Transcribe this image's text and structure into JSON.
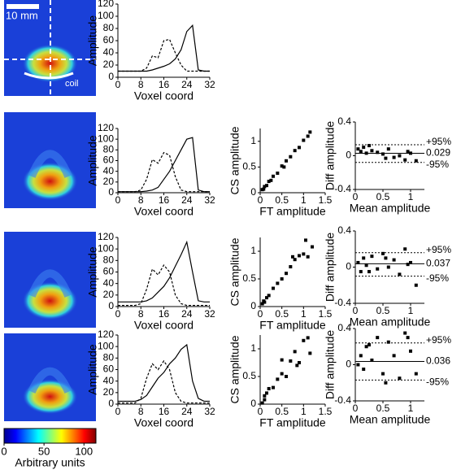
{
  "chart_data": [
    {
      "type": "image",
      "annotations": [
        "10 mm",
        "coil"
      ]
    },
    {
      "type": "line",
      "xlabel": "Voxel coord",
      "ylabel": "Amplitude",
      "x": [
        0,
        2,
        4,
        6,
        8,
        10,
        12,
        14,
        16,
        18,
        20,
        22,
        24,
        26,
        28,
        30,
        32
      ],
      "xlim": [
        0,
        32
      ],
      "xticks": [
        0,
        8,
        16,
        24,
        32
      ],
      "ylim": [
        0,
        120
      ],
      "yticks": [
        0,
        20,
        40,
        60,
        80,
        100,
        120
      ],
      "series": [
        {
          "color": "#000000",
          "dash": "solid",
          "values": [
            10,
            10,
            10,
            10,
            10,
            10,
            12,
            15,
            18,
            22,
            30,
            45,
            75,
            85,
            12,
            10,
            10
          ]
        },
        {
          "color": "#000000",
          "dash": "dashed",
          "values": [
            10,
            10,
            10,
            10,
            10,
            15,
            35,
            32,
            60,
            62,
            40,
            20,
            10,
            10,
            10,
            10,
            10
          ]
        }
      ]
    },
    {
      "type": "image"
    },
    {
      "type": "line",
      "xlabel": "Voxel coord",
      "ylabel": "Amplitude",
      "x": [
        0,
        2,
        4,
        6,
        8,
        10,
        12,
        14,
        16,
        18,
        20,
        22,
        24,
        26,
        28,
        30,
        32
      ],
      "xlim": [
        0,
        32
      ],
      "xticks": [
        0,
        8,
        16,
        24,
        32
      ],
      "ylim": [
        0,
        120
      ],
      "yticks": [
        0,
        20,
        40,
        60,
        80,
        100,
        120
      ],
      "series": [
        {
          "color": "#000000",
          "dash": "solid",
          "values": [
            2,
            2,
            2,
            2,
            2,
            3,
            5,
            10,
            25,
            40,
            60,
            80,
            100,
            103,
            5,
            2,
            2
          ]
        },
        {
          "color": "#000000",
          "dash": "dashed",
          "values": [
            2,
            2,
            2,
            2,
            5,
            25,
            62,
            55,
            75,
            70,
            30,
            5,
            2,
            2,
            2,
            2,
            2
          ]
        }
      ]
    },
    {
      "type": "scatter",
      "xlabel": "FT amplitude",
      "ylabel": "CS amplitude",
      "xlim": [
        0,
        1.5
      ],
      "xticks": [
        0,
        0.5,
        1,
        1.5
      ],
      "ylim": [
        0,
        1.25
      ],
      "yticks": [
        0,
        0.5,
        1
      ],
      "color": "#000000",
      "x": [
        0.05,
        0.08,
        0.1,
        0.15,
        0.2,
        0.25,
        0.3,
        0.4,
        0.5,
        0.6,
        0.7,
        0.8,
        0.9,
        1.0,
        1.1,
        1.15,
        0.55
      ],
      "values": [
        0.06,
        0.07,
        0.12,
        0.14,
        0.22,
        0.24,
        0.32,
        0.38,
        0.52,
        0.62,
        0.7,
        0.82,
        0.88,
        1.02,
        1.1,
        1.18,
        0.5
      ]
    },
    {
      "type": "bland",
      "xlabel": "Mean amplitude",
      "ylabel": "Diff amplitude",
      "xlim": [
        0,
        1.25
      ],
      "xticks": [
        0,
        0.5,
        1
      ],
      "ylim": [
        -0.4,
        0.4
      ],
      "yticks": [
        -0.4,
        0,
        0.4
      ],
      "color": "#000000",
      "x": [
        0.05,
        0.1,
        0.15,
        0.2,
        0.3,
        0.4,
        0.5,
        0.6,
        0.7,
        0.8,
        0.9,
        1.0,
        1.1,
        0.25,
        0.55,
        0.95
      ],
      "values": [
        0.08,
        0.05,
        0.1,
        0.03,
        0.06,
        0.04,
        0.02,
        0.08,
        -0.02,
        0.0,
        -0.05,
        0.03,
        -0.06,
        0.12,
        -0.03,
        0.05
      ],
      "reference_lines": [
        {
          "value": 0.13,
          "label": "+95%"
        },
        {
          "value": 0.029,
          "label": "0.029"
        },
        {
          "value": -0.08,
          "label": "-95%"
        }
      ]
    },
    {
      "type": "image"
    },
    {
      "type": "line",
      "xlabel": "Voxel coord",
      "ylabel": "Amplitude",
      "x": [
        0,
        2,
        4,
        6,
        8,
        10,
        12,
        14,
        16,
        18,
        20,
        22,
        24,
        26,
        28,
        30,
        32
      ],
      "xlim": [
        0,
        32
      ],
      "xticks": [
        0,
        8,
        16,
        24,
        32
      ],
      "ylim": [
        0,
        120
      ],
      "yticks": [
        0,
        20,
        40,
        60,
        80,
        100,
        120
      ],
      "series": [
        {
          "color": "#000000",
          "dash": "solid",
          "values": [
            8,
            8,
            8,
            8,
            8,
            10,
            15,
            25,
            35,
            50,
            70,
            90,
            112,
            60,
            10,
            8,
            8
          ]
        },
        {
          "color": "#000000",
          "dash": "dashed",
          "values": [
            2,
            2,
            2,
            2,
            5,
            30,
            65,
            55,
            72,
            60,
            20,
            5,
            2,
            2,
            2,
            2,
            2
          ]
        }
      ]
    },
    {
      "type": "scatter",
      "xlabel": "FT amplitude",
      "ylabel": "CS amplitude",
      "xlim": [
        0,
        1.5
      ],
      "xticks": [
        0,
        0.5,
        1,
        1.5
      ],
      "ylim": [
        0,
        1.25
      ],
      "yticks": [
        0,
        0.5,
        1
      ],
      "color": "#000000",
      "x": [
        0.05,
        0.08,
        0.1,
        0.15,
        0.2,
        0.3,
        0.4,
        0.5,
        0.6,
        0.7,
        0.8,
        0.9,
        1.0,
        1.05,
        1.1,
        1.2,
        0.75
      ],
      "values": [
        0.05,
        0.1,
        0.08,
        0.16,
        0.2,
        0.33,
        0.42,
        0.5,
        0.6,
        0.72,
        0.85,
        0.92,
        0.95,
        1.2,
        0.9,
        1.08,
        0.9
      ]
    },
    {
      "type": "bland",
      "xlabel": "Mean amplitude",
      "ylabel": "Diff amplitude",
      "xlim": [
        0,
        1.25
      ],
      "xticks": [
        0,
        0.5,
        1
      ],
      "ylim": [
        -0.4,
        0.4
      ],
      "yticks": [
        -0.4,
        0,
        0.4
      ],
      "color": "#000000",
      "x": [
        0.05,
        0.1,
        0.15,
        0.2,
        0.3,
        0.4,
        0.5,
        0.6,
        0.7,
        0.8,
        0.9,
        1.0,
        1.1,
        0.25,
        0.55,
        0.95
      ],
      "values": [
        0.05,
        -0.05,
        0.1,
        0.02,
        0.12,
        -0.02,
        0.15,
        0.0,
        0.08,
        -0.08,
        0.2,
        0.05,
        -0.2,
        -0.05,
        0.1,
        0.03
      ],
      "reference_lines": [
        {
          "value": 0.16,
          "label": "+95%"
        },
        {
          "value": 0.037,
          "label": "0.037"
        },
        {
          "value": -0.1,
          "label": "-95%"
        }
      ]
    },
    {
      "type": "image"
    },
    {
      "type": "line",
      "xlabel": "Voxel coord",
      "ylabel": "Amplitude",
      "x": [
        0,
        2,
        4,
        6,
        8,
        10,
        12,
        14,
        16,
        18,
        20,
        22,
        24,
        26,
        28,
        30,
        32
      ],
      "xlim": [
        0,
        32
      ],
      "xticks": [
        0,
        8,
        16,
        24,
        32
      ],
      "ylim": [
        0,
        120
      ],
      "yticks": [
        0,
        20,
        40,
        60,
        80,
        100,
        120
      ],
      "series": [
        {
          "color": "#000000",
          "dash": "solid",
          "values": [
            5,
            5,
            5,
            5,
            8,
            15,
            30,
            45,
            55,
            70,
            80,
            95,
            103,
            40,
            10,
            5,
            5
          ]
        },
        {
          "color": "#000000",
          "dash": "dashed",
          "values": [
            2,
            2,
            2,
            2,
            10,
            45,
            70,
            60,
            75,
            60,
            20,
            5,
            2,
            2,
            2,
            2,
            2
          ]
        }
      ]
    },
    {
      "type": "scatter",
      "xlabel": "FT amplitude",
      "ylabel": "CS amplitude",
      "xlim": [
        0,
        1.5
      ],
      "xticks": [
        0,
        0.5,
        1,
        1.5
      ],
      "ylim": [
        0,
        1.25
      ],
      "yticks": [
        0,
        0.5,
        1
      ],
      "color": "#000000",
      "x": [
        0.05,
        0.1,
        0.1,
        0.15,
        0.2,
        0.3,
        0.4,
        0.5,
        0.6,
        0.7,
        0.8,
        0.9,
        1.0,
        1.1,
        1.15,
        0.5,
        0.85
      ],
      "values": [
        0.02,
        0.08,
        0.15,
        0.2,
        0.28,
        0.3,
        0.45,
        0.55,
        0.5,
        0.78,
        0.95,
        0.75,
        1.15,
        1.2,
        0.92,
        0.8,
        0.7
      ]
    },
    {
      "type": "bland",
      "xlabel": "Mean amplitude",
      "ylabel": "Diff amplitude",
      "xlim": [
        0,
        1.25
      ],
      "xticks": [
        0,
        0.5,
        1
      ],
      "ylim": [
        -0.4,
        0.4
      ],
      "yticks": [
        -0.4,
        0,
        0.4
      ],
      "color": "#000000",
      "x": [
        0.05,
        0.1,
        0.15,
        0.2,
        0.3,
        0.4,
        0.5,
        0.6,
        0.7,
        0.8,
        0.9,
        1.0,
        1.1,
        0.25,
        0.55,
        0.95
      ],
      "values": [
        0.0,
        0.1,
        -0.05,
        0.2,
        0.05,
        0.3,
        -0.1,
        0.25,
        0.1,
        -0.15,
        0.35,
        0.15,
        -0.1,
        0.22,
        -0.2,
        0.3
      ],
      "reference_lines": [
        {
          "value": 0.24,
          "label": "+95%"
        },
        {
          "value": 0.036,
          "label": "0.036"
        },
        {
          "value": -0.17,
          "label": "-95%"
        }
      ]
    },
    {
      "type": "colorbar",
      "xlabel": "Arbitrary units",
      "xlim": [
        0,
        115
      ],
      "xticks": [
        0,
        50,
        100
      ]
    }
  ]
}
